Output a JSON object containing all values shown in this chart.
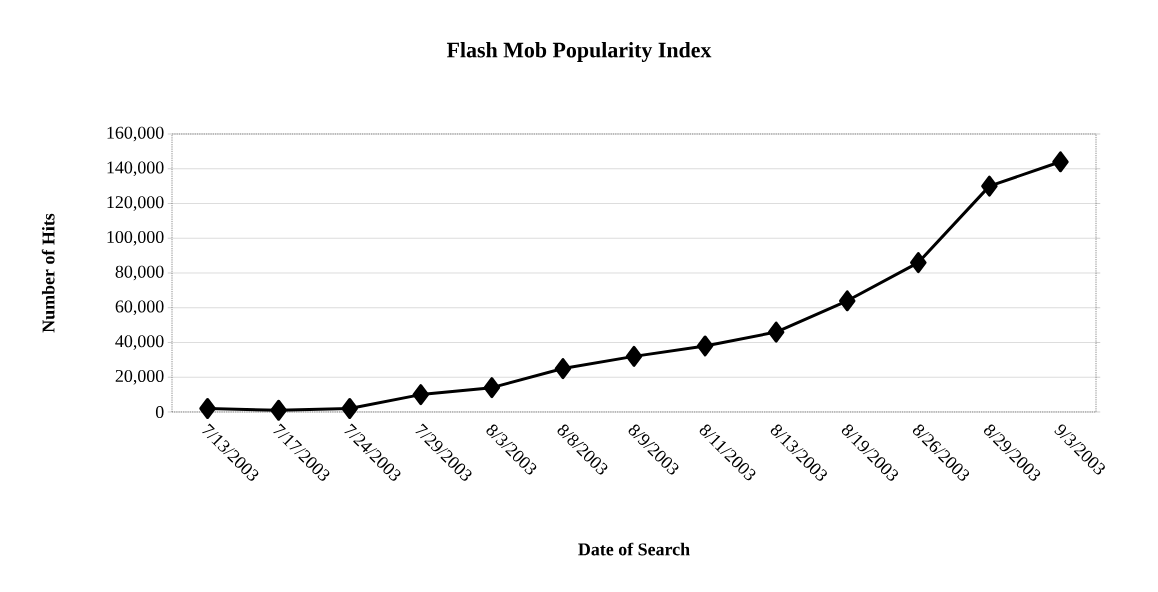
{
  "chart_data": {
    "type": "line",
    "title": "Flash Mob Popularity Index",
    "xlabel": "Date of Search",
    "ylabel": "Number of Hits",
    "categories": [
      "7/13/2003",
      "7/17/2003",
      "7/24/2003",
      "7/29/2003",
      "8/3/2003",
      "8/8/2003",
      "8/9/2003",
      "8/11/2003",
      "8/13/2003",
      "8/19/2003",
      "8/26/2003",
      "8/29/2003",
      "9/3/2003"
    ],
    "values": [
      2000,
      1000,
      2000,
      10000,
      14000,
      25000,
      32000,
      38000,
      46000,
      64000,
      86000,
      130000,
      144000
    ],
    "color": "#000000",
    "marker": "diamond",
    "line_style": "solid",
    "grid": "y",
    "ylim": [
      0,
      160000
    ],
    "yticks": [
      {
        "value": 0,
        "label": "0"
      },
      {
        "value": 20000,
        "label": "20,000"
      },
      {
        "value": 40000,
        "label": "40,000"
      },
      {
        "value": 60000,
        "label": "60,000"
      },
      {
        "value": 80000,
        "label": "80,000"
      },
      {
        "value": 100000,
        "label": "100,000"
      },
      {
        "value": 120000,
        "label": "120,000"
      },
      {
        "value": 140000,
        "label": "140,000"
      },
      {
        "value": 160000,
        "label": "160,000"
      }
    ]
  }
}
